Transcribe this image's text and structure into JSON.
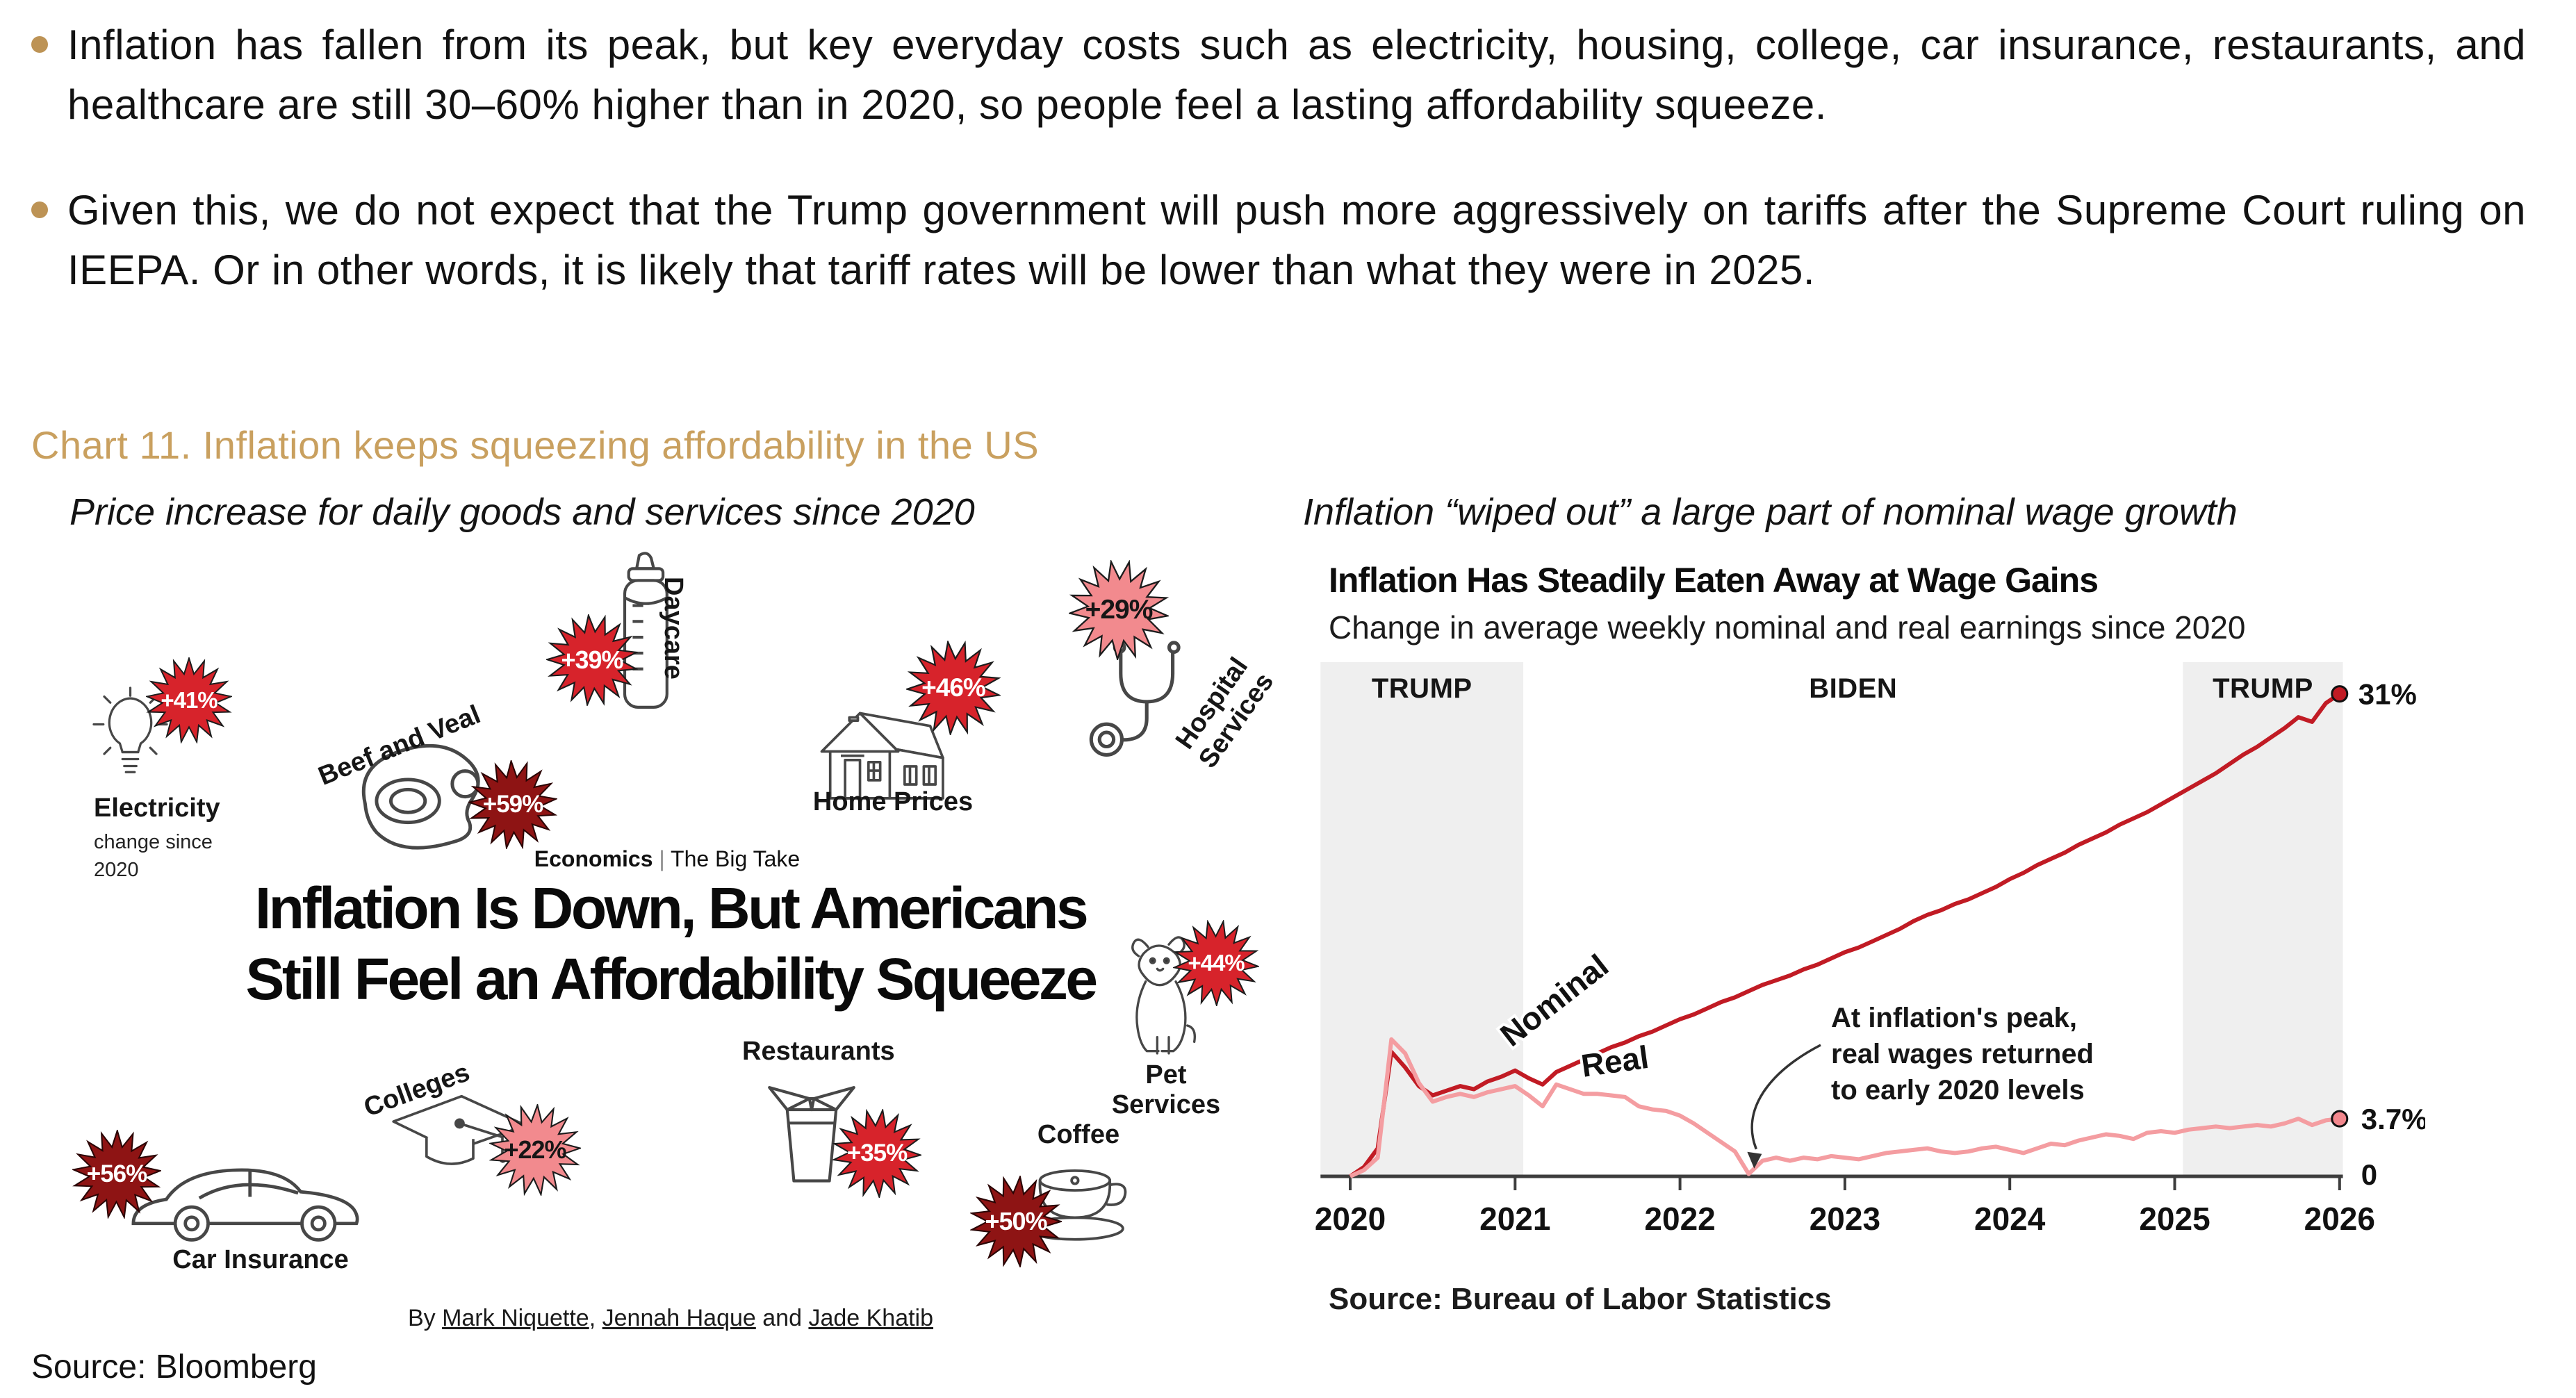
{
  "bullets": [
    "Inflation has fallen from its peak, but key everyday costs such as electricity, housing, college, car insurance, restaurants, and healthcare are still 30–60% higher than in 2020, so people feel a lasting affordability squeeze.",
    "Given this, we do not expect that the Trump government will push more aggressively on tariffs after the Supreme Court ruling on IEEPA. Or in other words, it is likely that tariff rates will be lower than what they were in 2025."
  ],
  "chart_caption": "Chart 11. Inflation keeps squeezing affordability in the US",
  "source": "Source: Bloomberg",
  "left_panel": {
    "subtitle": "Price increase for daily goods and services since 2020",
    "kicker": {
      "section": "Economics",
      "divider": " | ",
      "name": "The Big Take"
    },
    "headline_line1": "Inflation Is Down, But Americans",
    "headline_line2": "Still Feel an Affordability Squeeze",
    "byline": {
      "by": "By ",
      "a1": "Mark Niquette",
      "sep1": ", ",
      "a2": "Jennah Haque",
      "sep2": " and ",
      "a3": "Jade Khatib"
    },
    "items": [
      {
        "id": "electricity",
        "label": "Electricity",
        "sublabel": "change since 2020",
        "value": "+41%",
        "tone": "bright"
      },
      {
        "id": "beef-and-veal",
        "label": "Beef and Veal",
        "value": "+59%",
        "tone": "dark"
      },
      {
        "id": "daycare",
        "label": "Daycare",
        "value": "+39%",
        "tone": "bright"
      },
      {
        "id": "home-prices",
        "label": "Home Prices",
        "value": "+46%",
        "tone": "bright"
      },
      {
        "id": "hospital-services",
        "label": "Hospital Services",
        "value": "+29%",
        "tone": "pink"
      },
      {
        "id": "pet-services",
        "label": "Pet Services",
        "value": "+44%",
        "tone": "bright"
      },
      {
        "id": "restaurants",
        "label": "Restaurants",
        "value": "+35%",
        "tone": "bright"
      },
      {
        "id": "coffee",
        "label": "Coffee",
        "value": "+50%",
        "tone": "dark"
      },
      {
        "id": "colleges",
        "label": "Colleges",
        "value": "+22%",
        "tone": "pink"
      },
      {
        "id": "car-insurance",
        "label": "Car Insurance",
        "value": "+56%",
        "tone": "dark"
      }
    ]
  },
  "right_panel": {
    "subtitle": "Inflation  “wiped out” a large part of nominal wage growth",
    "source": "Source: Bureau of Labor Statistics"
  },
  "chart_data": {
    "type": "line",
    "title": "Inflation Has Steadily Eaten Away at Wage Gains",
    "subtitle": "Change in average weekly nominal and real earnings since 2020",
    "x_start": 2020,
    "x_step_months": 1,
    "x_ticks": [
      2020,
      2021,
      2022,
      2023,
      2024,
      2025,
      2026
    ],
    "ylim": [
      0,
      33
    ],
    "grid": "off",
    "bands": [
      {
        "label": "TRUMP",
        "from": 2019.82,
        "to": 2021.05
      },
      {
        "label": "BIDEN",
        "from": 2021.05,
        "to": 2025.05
      },
      {
        "label": "TRUMP",
        "from": 2025.05,
        "to": 2026.02
      }
    ],
    "end_labels": {
      "nominal": "31%",
      "real": "3.7%",
      "zero": "0"
    },
    "annotation": {
      "lines": [
        "At inflation's peak,",
        "real wages returned",
        "to early 2020 levels"
      ],
      "arrow_to": [
        2022.45,
        0.5
      ]
    },
    "series": [
      {
        "name": "Nominal",
        "color": "#c11b24",
        "values": [
          0,
          0.6,
          1.8,
          8.0,
          7.0,
          5.8,
          5.2,
          5.5,
          5.8,
          5.6,
          6.1,
          6.4,
          6.8,
          6.3,
          5.9,
          6.7,
          7.1,
          7.5,
          7.9,
          8.3,
          8.6,
          9.0,
          9.3,
          9.7,
          10.1,
          10.4,
          10.8,
          11.2,
          11.5,
          11.9,
          12.3,
          12.6,
          12.9,
          13.3,
          13.6,
          14.0,
          14.4,
          14.7,
          15.1,
          15.5,
          15.9,
          16.4,
          16.8,
          17.1,
          17.5,
          17.8,
          18.2,
          18.6,
          19.1,
          19.5,
          20.0,
          20.4,
          20.8,
          21.3,
          21.7,
          22.1,
          22.6,
          23.0,
          23.4,
          23.9,
          24.4,
          24.9,
          25.4,
          25.9,
          26.5,
          27.1,
          27.6,
          28.2,
          28.8,
          29.5,
          29.2,
          30.4,
          31.0
        ]
      },
      {
        "name": "Real",
        "color": "#f49da1",
        "values": [
          0,
          0.4,
          1.2,
          8.8,
          7.9,
          6.0,
          4.8,
          5.1,
          5.3,
          5.1,
          5.4,
          5.6,
          5.8,
          5.2,
          4.5,
          5.9,
          5.6,
          5.3,
          5.3,
          5.2,
          5.1,
          4.5,
          4.3,
          4.2,
          3.9,
          3.4,
          2.8,
          2.2,
          1.6,
          0.15,
          1.0,
          1.2,
          1.0,
          1.2,
          1.1,
          1.3,
          1.2,
          1.1,
          1.3,
          1.5,
          1.6,
          1.7,
          1.8,
          1.6,
          1.5,
          1.6,
          1.8,
          1.9,
          1.7,
          1.5,
          1.8,
          2.1,
          2.0,
          2.3,
          2.5,
          2.7,
          2.6,
          2.4,
          2.8,
          2.9,
          2.8,
          3.0,
          3.1,
          3.2,
          3.1,
          3.2,
          3.3,
          3.2,
          3.4,
          3.7,
          3.3,
          3.6,
          3.7
        ]
      }
    ]
  },
  "colors": {
    "accent_tan": "#c9a05f",
    "bullet_dot": "#bd9355",
    "band": "#efefef",
    "axis": "#3d3d3d",
    "ink": "#161616",
    "nominal_line": "#c11b24",
    "real_line": "#f49da1",
    "burst": {
      "bright": {
        "bg": "#d7232b",
        "text": "#ffffff",
        "edge": "#1c1c1c"
      },
      "dark": {
        "bg": "#8e1414",
        "text": "#ffffff",
        "edge": "#2a0505"
      },
      "pink": {
        "bg": "#f28a8e",
        "text": "#161616",
        "edge": "#1c1c1c"
      }
    }
  }
}
